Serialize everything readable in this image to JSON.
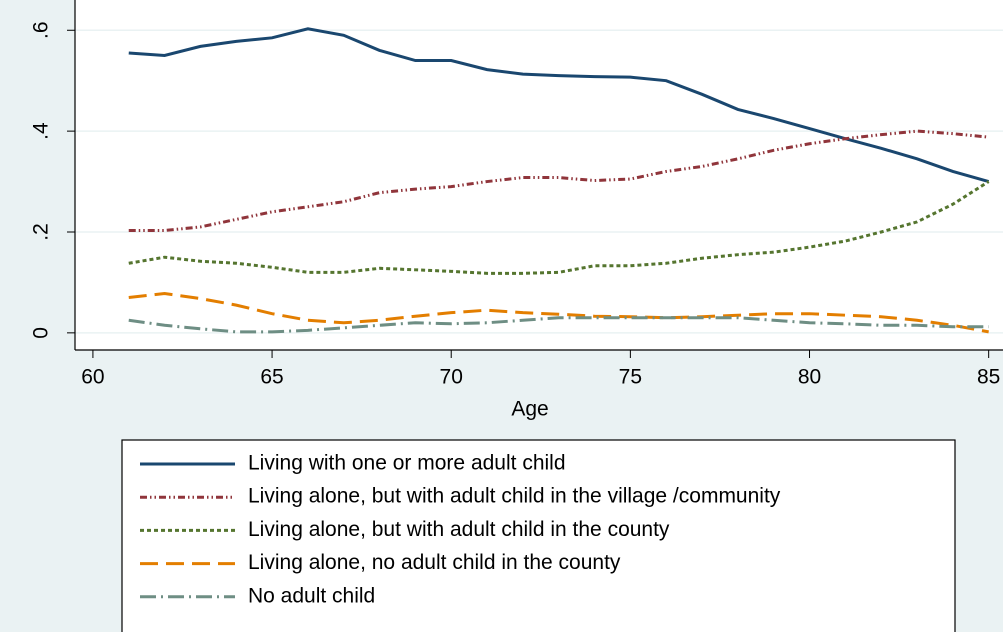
{
  "chart_data": {
    "type": "line",
    "x_label": "Age",
    "x": [
      61,
      62,
      63,
      64,
      65,
      66,
      67,
      68,
      69,
      70,
      71,
      72,
      73,
      74,
      75,
      76,
      77,
      78,
      79,
      80,
      81,
      82,
      83,
      84,
      85
    ],
    "series": [
      {
        "name": "Living with one or more adult child",
        "color": "#1a476f",
        "dash": "none",
        "values": [
          0.555,
          0.55,
          0.568,
          0.578,
          0.585,
          0.603,
          0.59,
          0.56,
          0.54,
          0.54,
          0.522,
          0.513,
          0.51,
          0.508,
          0.507,
          0.5,
          0.473,
          0.443,
          0.425,
          0.405,
          0.385,
          0.366,
          0.345,
          0.32,
          0.3
        ]
      },
      {
        "name": "Living alone, but with adult child in the village /community",
        "color": "#90353b",
        "dash": "7,3,1.5,3,1.5,3",
        "values": [
          0.203,
          0.203,
          0.21,
          0.225,
          0.24,
          0.25,
          0.26,
          0.278,
          0.285,
          0.29,
          0.3,
          0.308,
          0.308,
          0.302,
          0.305,
          0.32,
          0.33,
          0.345,
          0.362,
          0.375,
          0.385,
          0.393,
          0.4,
          0.395,
          0.388
        ]
      },
      {
        "name": "Living alone, but with adult child in the county",
        "color": "#55752f",
        "dash": "4,3",
        "values": [
          0.138,
          0.15,
          0.142,
          0.138,
          0.13,
          0.12,
          0.12,
          0.128,
          0.125,
          0.122,
          0.118,
          0.118,
          0.12,
          0.133,
          0.133,
          0.138,
          0.148,
          0.155,
          0.16,
          0.17,
          0.182,
          0.2,
          0.22,
          0.255,
          0.3
        ]
      },
      {
        "name": "Living alone, no adult child in the county",
        "color": "#e37e00",
        "dash": "18,8",
        "values": [
          0.07,
          0.078,
          0.068,
          0.055,
          0.038,
          0.025,
          0.02,
          0.025,
          0.033,
          0.04,
          0.045,
          0.04,
          0.037,
          0.033,
          0.032,
          0.03,
          0.032,
          0.035,
          0.038,
          0.038,
          0.035,
          0.032,
          0.025,
          0.015,
          0.002
        ]
      },
      {
        "name": "No adult child",
        "color": "#6e8e84",
        "dash": "16,5,2,5",
        "values": [
          0.025,
          0.015,
          0.008,
          0.002,
          0.002,
          0.005,
          0.01,
          0.015,
          0.02,
          0.018,
          0.02,
          0.025,
          0.03,
          0.03,
          0.03,
          0.03,
          0.03,
          0.03,
          0.025,
          0.02,
          0.018,
          0.015,
          0.015,
          0.012,
          0.012
        ]
      }
    ],
    "xlim": [
      59.5,
      85.4
    ],
    "xticks": [
      60,
      65,
      70,
      75,
      80,
      85
    ],
    "ylim": [
      -0.034,
      0.66
    ],
    "yticks": [
      0,
      {
        "value": 0.2,
        "label": ".2"
      },
      {
        "value": 0.4,
        "label": ".4"
      },
      {
        "value": 0.6,
        "label": ".6"
      }
    ],
    "grid": true,
    "legend": "bottom"
  }
}
